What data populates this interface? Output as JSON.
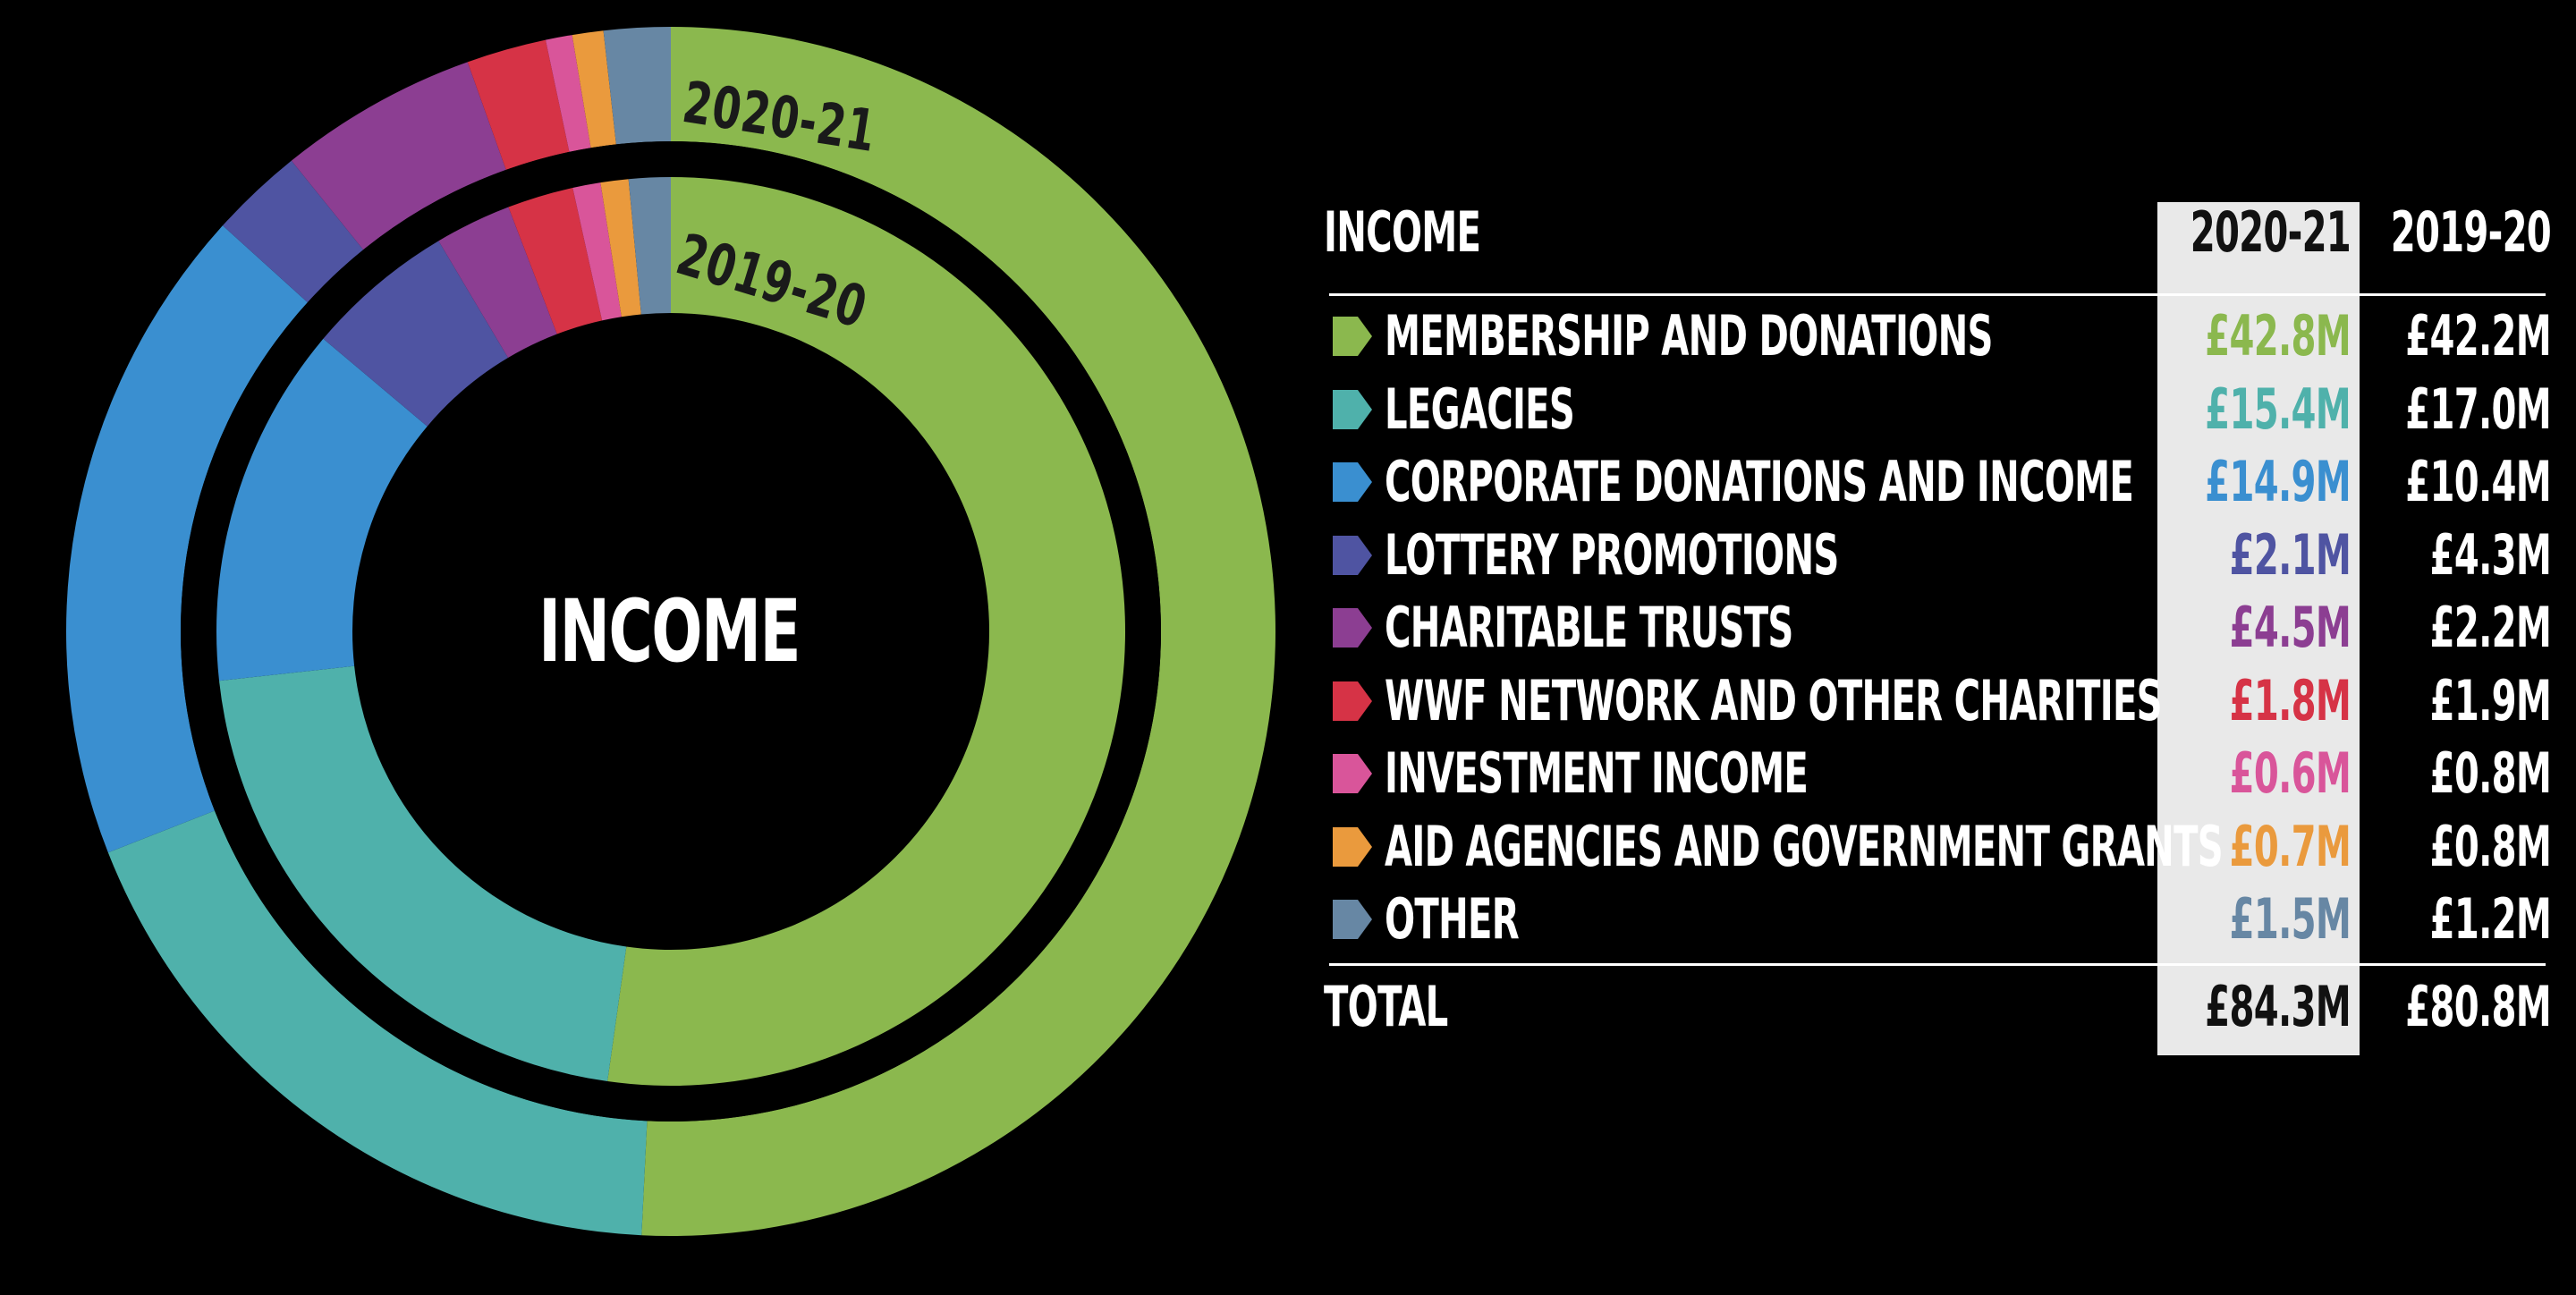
{
  "chart_data": {
    "type": "pie",
    "center_label": "INCOME",
    "columns": [
      "2020-21",
      "2019-20"
    ],
    "table_header": "INCOME",
    "categories": [
      {
        "name": "MEMBERSHIP AND DONATIONS",
        "color": "#8bb84e",
        "v2021": 42.8,
        "v2020": 42.2,
        "v2021_label": "£42.8M",
        "v2020_label": "£42.2M"
      },
      {
        "name": "LEGACIES",
        "color": "#4fb1ab",
        "v2021": 15.4,
        "v2020": 17.0,
        "v2021_label": "£15.4M",
        "v2020_label": "£17.0M"
      },
      {
        "name": "CORPORATE DONATIONS AND INCOME",
        "color": "#3a8fd0",
        "v2021": 14.9,
        "v2020": 10.4,
        "v2021_label": "£14.9M",
        "v2020_label": "£10.4M"
      },
      {
        "name": "LOTTERY PROMOTIONS",
        "color": "#4f54a2",
        "v2021": 2.1,
        "v2020": 4.3,
        "v2021_label": "£2.1M",
        "v2020_label": "£4.3M"
      },
      {
        "name": "CHARITABLE TRUSTS",
        "color": "#8c3e92",
        "v2021": 4.5,
        "v2020": 2.2,
        "v2021_label": "£4.5M",
        "v2020_label": "£2.2M"
      },
      {
        "name": "WWF NETWORK AND OTHER CHARITIES",
        "color": "#d63346",
        "v2021": 1.8,
        "v2020": 1.9,
        "v2021_label": "£1.8M",
        "v2020_label": "£1.9M"
      },
      {
        "name": "INVESTMENT INCOME",
        "color": "#d9559a",
        "v2021": 0.6,
        "v2020": 0.8,
        "v2021_label": "£0.6M",
        "v2020_label": "£0.8M"
      },
      {
        "name": "AID AGENCIES AND GOVERNMENT GRANTS",
        "color": "#ea9a3d",
        "v2021": 0.7,
        "v2020": 0.8,
        "v2021_label": "£0.7M",
        "v2020_label": "£0.8M"
      },
      {
        "name": "OTHER",
        "color": "#6787a4",
        "v2021": 1.5,
        "v2020": 1.2,
        "v2021_label": "£1.5M",
        "v2020_label": "£1.2M"
      }
    ],
    "total": {
      "label": "TOTAL",
      "v2021_label": "£84.3M",
      "v2020_label": "£80.8M"
    }
  }
}
